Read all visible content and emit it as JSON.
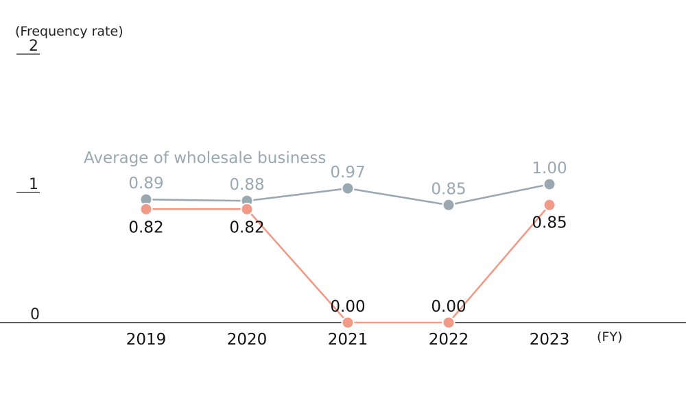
{
  "chart_data": {
    "type": "line",
    "ylabel": "(Frequency rate)",
    "xlabel": "(FY)",
    "x": [
      "2019",
      "2020",
      "2021",
      "2022",
      "2023"
    ],
    "ylim": [
      0,
      2
    ],
    "yticks": [
      "0",
      "1",
      "2"
    ],
    "grid": false,
    "legend": "inline",
    "series": [
      {
        "name": "Average of wholesale business",
        "color": "#9aa8b2",
        "values": [
          0.89,
          0.88,
          0.97,
          0.85,
          1.0
        ],
        "labels": [
          "0.89",
          "0.88",
          "0.97",
          "0.85",
          "1.00"
        ]
      },
      {
        "name": "",
        "color": "#f09a87",
        "values": [
          0.82,
          0.82,
          0.0,
          0.0,
          0.85
        ],
        "labels": [
          "0.82",
          "0.82",
          "0.00",
          "0.00",
          "0.85"
        ]
      }
    ]
  }
}
